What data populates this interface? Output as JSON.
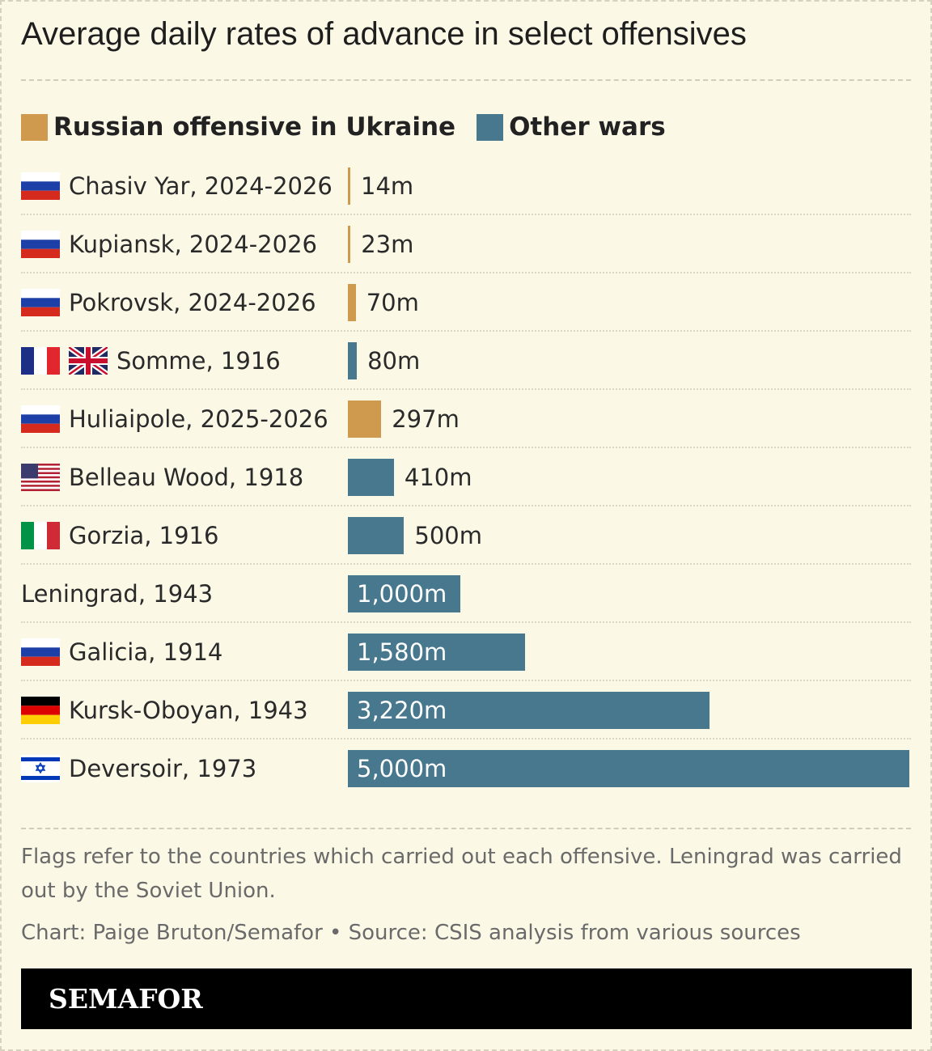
{
  "title": "Average daily rates of advance in select offensives",
  "colors": {
    "russian": "#d09a4e",
    "other": "#47788e",
    "background": "#fbf8e6"
  },
  "legend": [
    {
      "label": "Russian offensive in Ukraine",
      "color": "#d09a4e"
    },
    {
      "label": "Other wars",
      "color": "#47788e"
    }
  ],
  "chart_data": {
    "type": "bar",
    "orientation": "horizontal",
    "unit": "m",
    "xlim": [
      0,
      5000
    ],
    "categories": [
      "Chasiv Yar, 2024-2026",
      "Kupiansk, 2024-2026",
      "Pokrovsk, 2024-2026",
      "Somme, 1916",
      "Huliaipole, 2025-2026",
      "Belleau Wood, 1918",
      "Gorzia, 1916",
      "Leningrad, 1943",
      "Galicia, 1914",
      "Kursk-Oboyan, 1943",
      "Deversoir, 1973"
    ],
    "values": [
      14,
      23,
      70,
      80,
      297,
      410,
      500,
      1000,
      1580,
      3220,
      5000
    ],
    "value_labels": [
      "14m",
      "23m",
      "70m",
      "80m",
      "297m",
      "410m",
      "500m",
      "1,000m",
      "1,580m",
      "3,220m",
      "5,000m"
    ],
    "groups": [
      "russian",
      "russian",
      "russian",
      "other",
      "russian",
      "other",
      "other",
      "other",
      "other",
      "other",
      "other"
    ],
    "flags": [
      [
        "russia-flag-icon"
      ],
      [
        "russia-flag-icon"
      ],
      [
        "russia-flag-icon"
      ],
      [
        "france-flag-icon",
        "uk-flag-icon"
      ],
      [
        "russia-flag-icon"
      ],
      [
        "usa-flag-icon"
      ],
      [
        "italy-flag-icon"
      ],
      [],
      [
        "russia-flag-icon"
      ],
      [
        "germany-flag-icon"
      ],
      [
        "israel-flag-icon"
      ]
    ]
  },
  "note": "Flags refer to the countries which carried out each offensive. Leningrad was carried out by the Soviet Union.",
  "credit": "Chart: Paige Bruton/Semafor • Source: CSIS analysis from various sources",
  "brand": "SEMAFOR"
}
